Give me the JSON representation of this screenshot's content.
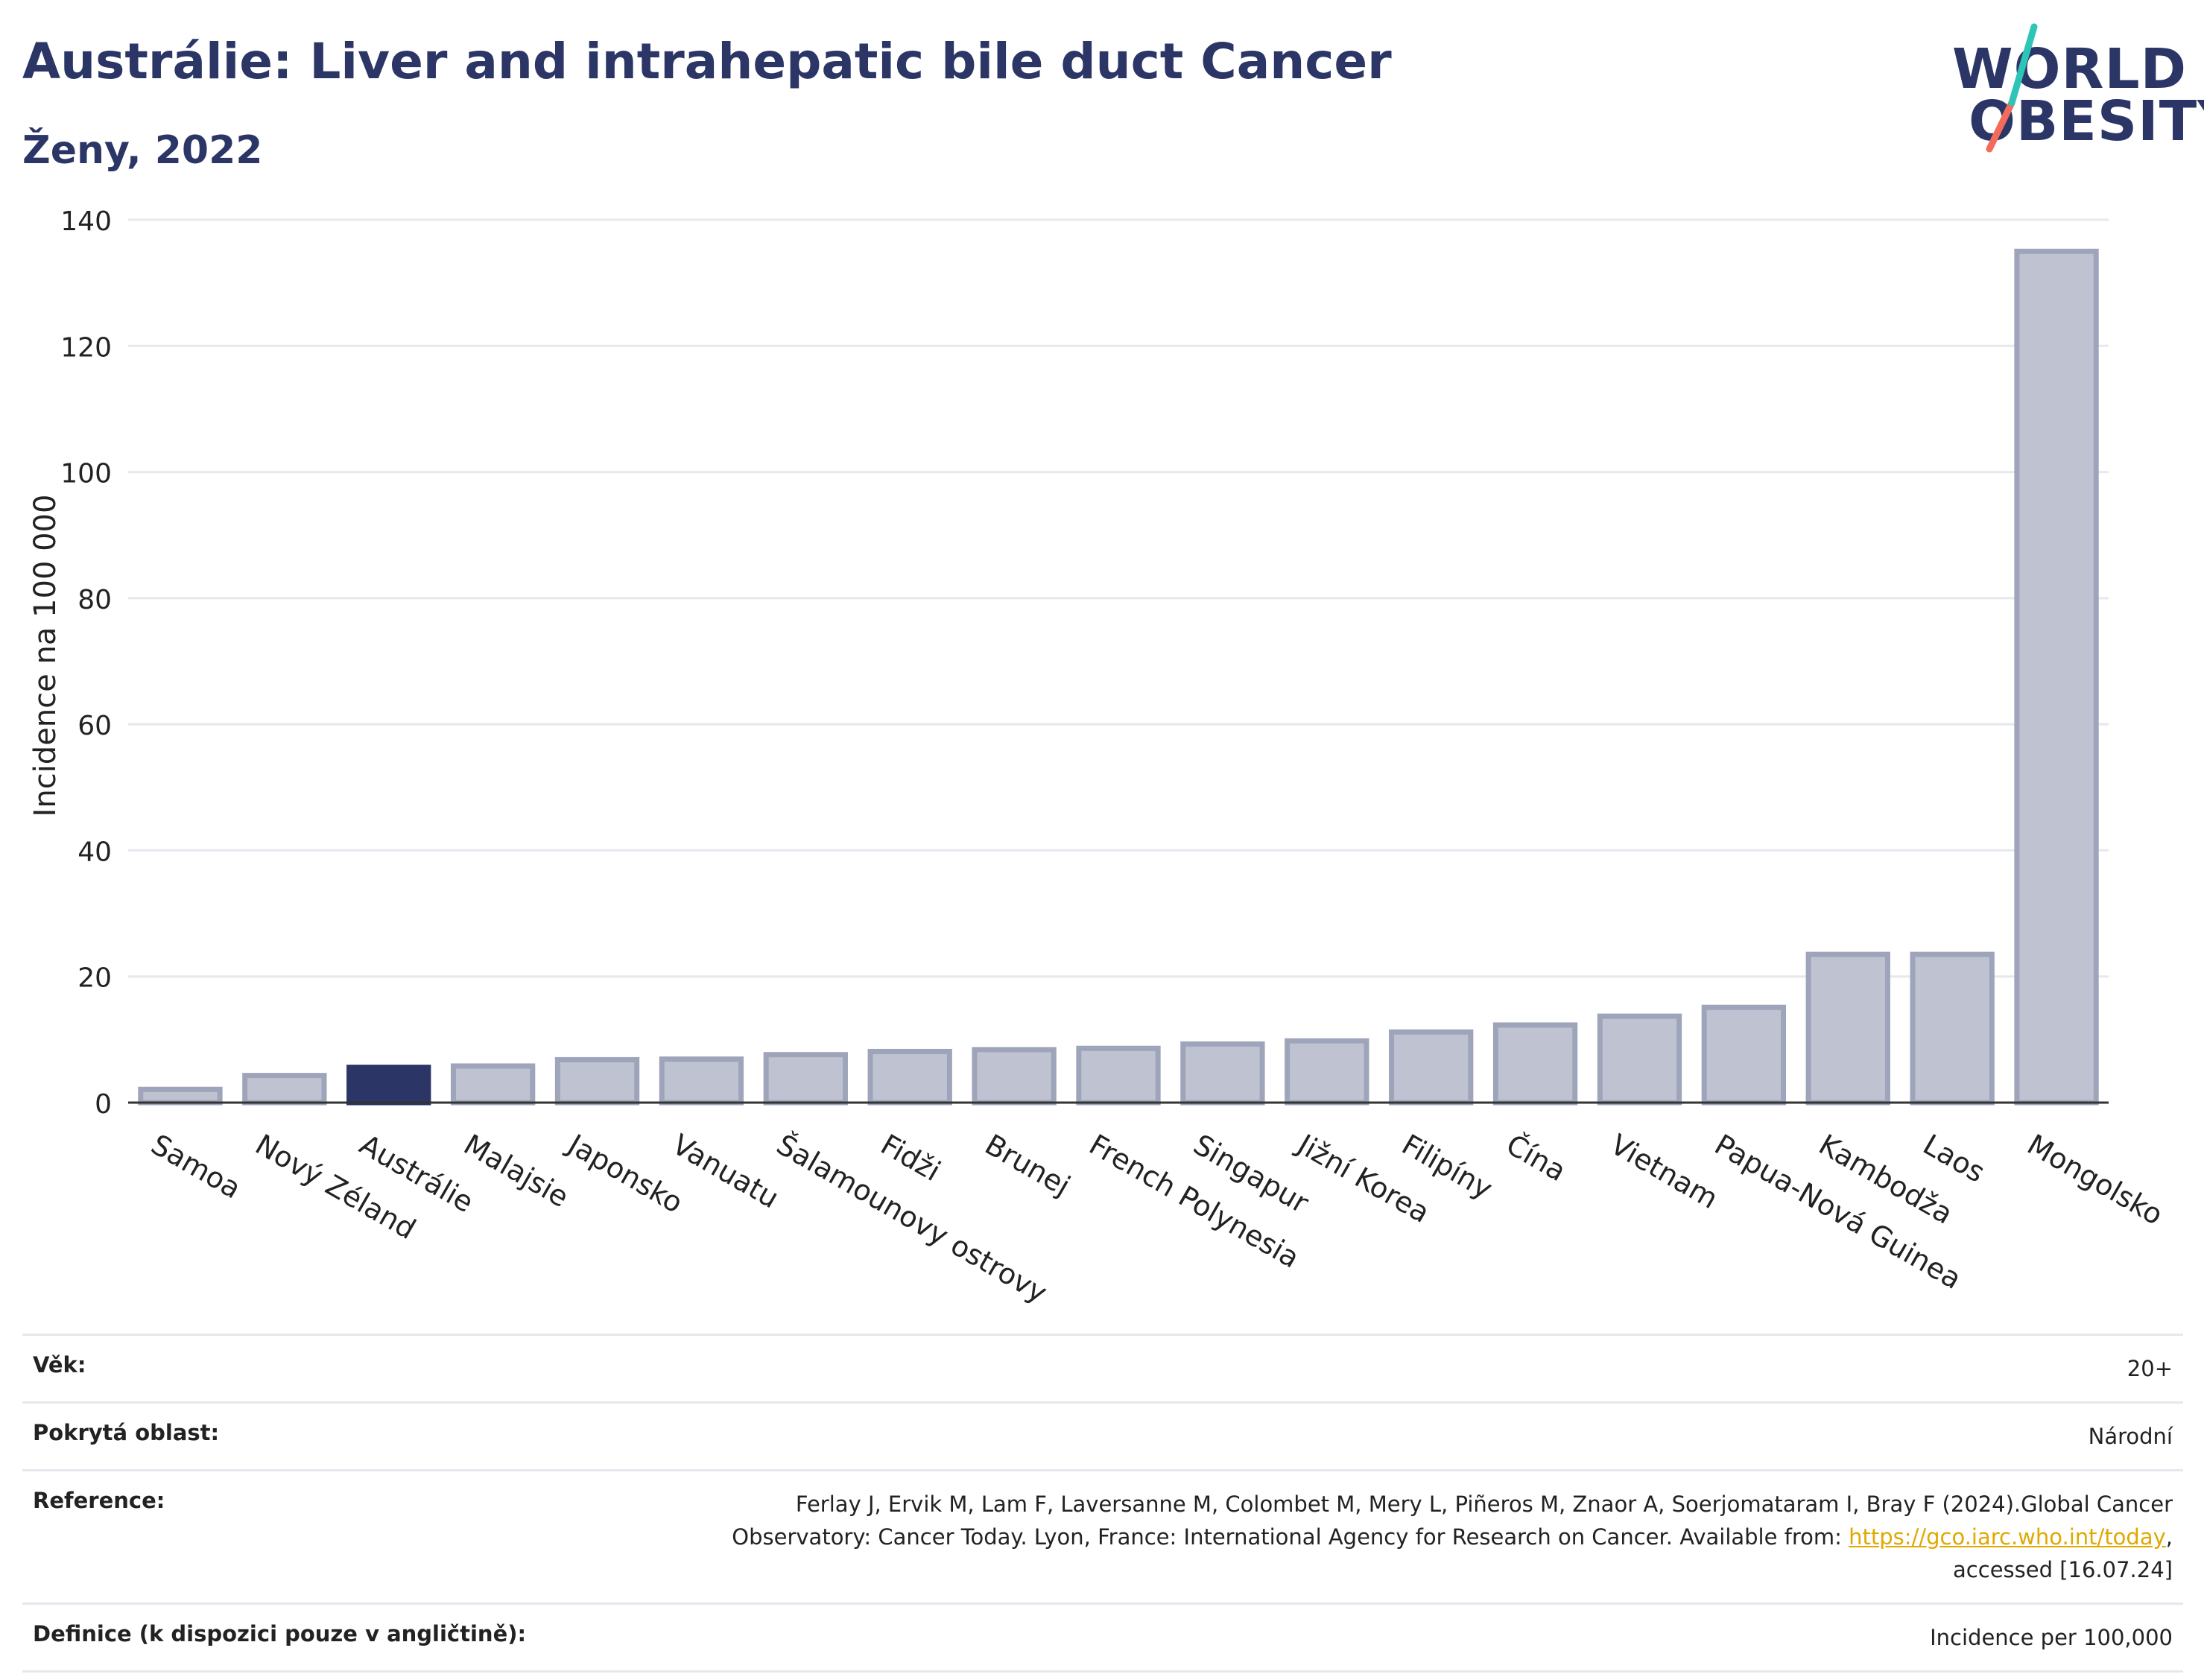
{
  "header": {
    "title": "Austrálie: Liver and intrahepatic bile duct Cancer",
    "subtitle": "Ženy, 2022"
  },
  "logo": {
    "line1": "WORLD",
    "line2": "OBESITY",
    "accent_colors": [
      "#2ec4b6",
      "#f26b5b"
    ]
  },
  "colors": {
    "highlight": "#2b3566",
    "bar": "#bfc3d1",
    "bar_stroke": "#9ea4ba",
    "axis": "#333333",
    "grid": "#e6e8ee"
  },
  "chart_data": {
    "type": "bar",
    "ylabel": "Incidence na 100 000",
    "ylim": [
      0,
      140
    ],
    "yticks": [
      0,
      20,
      40,
      60,
      80,
      100,
      120,
      140
    ],
    "highlight": "Austrálie",
    "categories": [
      "Samoa",
      "Nový Zéland",
      "Austrálie",
      "Malajsie",
      "Japonsko",
      "Vanuatu",
      "Šalamounovy ostrovy",
      "Fidži",
      "Brunej",
      "French Polynesia",
      "Singapur",
      "Jižní Korea",
      "Filipíny",
      "Čína",
      "Vietnam",
      "Papua-Nová Guinea",
      "Kambodža",
      "Laos",
      "Mongolsko"
    ],
    "values": [
      2.1,
      4.3,
      5.6,
      5.8,
      6.8,
      6.9,
      7.6,
      8.1,
      8.4,
      8.6,
      9.3,
      9.8,
      11.2,
      12.3,
      13.7,
      15.1,
      23.5,
      23.5,
      135.0
    ]
  },
  "info": {
    "age_label": "Věk:",
    "age_value": "20+",
    "coverage_label": "Pokrytá oblast:",
    "coverage_value": "Národní",
    "reference_label": "Reference:",
    "reference_text_1": "Ferlay J, Ervik M, Lam F, Laversanne M, Colombet M, Mery L, Piñeros M, Znaor A, Soerjomataram I, Bray F (2024).Global Cancer",
    "reference_text_2": "Observatory: Cancer Today. Lyon, France: International Agency for Research on Cancer. Available from: ",
    "reference_link": "https://gco.iarc.who.int/today",
    "reference_text_3": ",",
    "reference_text_4": "accessed [16.07.24]",
    "definition_label": "Definice (k dispozici pouze v angličtině):",
    "definition_value": "Incidence per 100,000"
  }
}
